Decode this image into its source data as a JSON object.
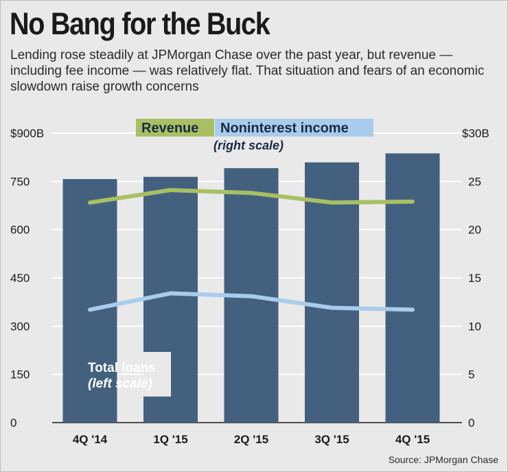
{
  "title": "No Bang for the Buck",
  "subtitle": "Lending rose steadily at JPMorgan Chase over the past year, but revenue — including fee income — was relatively flat. That situation and fears of an economic slowdown raise growth concerns",
  "source": "Source: JPMorgan Chase",
  "colors": {
    "bar": "#44607f",
    "revenue": "#a8c063",
    "noninterest": "#a9ccec",
    "background": "#e9e9e9",
    "gridline": "#ffffff"
  },
  "chart_data": {
    "type": "bar",
    "categories": [
      "4Q '14",
      "1Q '15",
      "2Q '15",
      "3Q '15",
      "4Q '15"
    ],
    "left_axis": {
      "top_label": "$900B",
      "ticks": [
        "0",
        "150",
        "300",
        "450",
        "600",
        "750"
      ],
      "range": [
        0,
        900
      ]
    },
    "right_axis": {
      "top_label": "$30B",
      "ticks": [
        "0",
        "5",
        "10",
        "15",
        "20",
        "25"
      ],
      "range": [
        0,
        30
      ]
    },
    "series": [
      {
        "name": "Total loans",
        "axis": "left",
        "kind": "bar",
        "values": [
          757,
          764,
          791,
          809,
          837
        ]
      },
      {
        "name": "Revenue",
        "axis": "right",
        "kind": "line",
        "values": [
          22.8,
          24.1,
          23.8,
          22.8,
          22.9
        ]
      },
      {
        "name": "Noninterest income",
        "axis": "right",
        "kind": "line",
        "values": [
          11.7,
          13.4,
          13.1,
          11.9,
          11.7
        ]
      }
    ],
    "legend": {
      "revenue": "Revenue",
      "noninterest": "Noninterest income",
      "right_scale": "(right scale)"
    },
    "bar_label": {
      "line1": "Total loans",
      "line2": "(left scale)"
    }
  }
}
